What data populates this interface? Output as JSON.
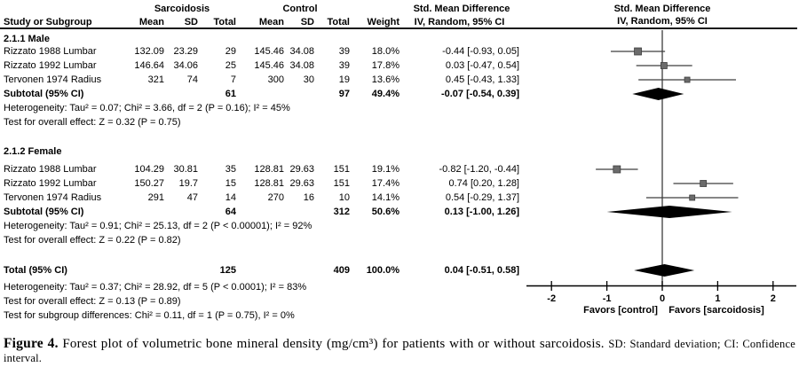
{
  "table": {
    "header": {
      "group1": "Sarcoidosis",
      "group2": "Control",
      "smd_title_left": "Std. Mean Difference",
      "smd_sub_left": "IV, Random, 95% CI",
      "smd_title_right": "Std. Mean Difference",
      "smd_sub_right": "IV, Random, 95% CI",
      "col_study": "Study or Subgroup",
      "col_mean1": "Mean",
      "col_sd1": "SD",
      "col_total1": "Total",
      "col_mean2": "Mean",
      "col_sd2": "SD",
      "col_total2": "Total",
      "col_weight": "Weight"
    },
    "subgroups": [
      {
        "label": "2.1.1 Male",
        "rows": [
          {
            "study": "Rizzato 1988 Lumbar",
            "mean1": "132.09",
            "sd1": "23.29",
            "total1": "29",
            "mean2": "145.46",
            "sd2": "34.08",
            "total2": "39",
            "weight": "18.0%",
            "ci": "-0.44 [-0.93, 0.05]"
          },
          {
            "study": "Rizzato 1992 Lumbar",
            "mean1": "146.64",
            "sd1": "34.06",
            "total1": "25",
            "mean2": "145.46",
            "sd2": "34.08",
            "total2": "39",
            "weight": "17.8%",
            "ci": "0.03 [-0.47, 0.54]"
          },
          {
            "study": "Tervonen 1974 Radius",
            "mean1": "321",
            "sd1": "74",
            "total1": "7",
            "mean2": "300",
            "sd2": "30",
            "total2": "19",
            "weight": "13.6%",
            "ci": "0.45 [-0.43, 1.33]"
          }
        ],
        "subtotal": {
          "label": "Subtotal (95% CI)",
          "total1": "61",
          "total2": "97",
          "weight": "49.4%",
          "ci": "-0.07 [-0.54, 0.39]"
        },
        "heterogeneity": "Heterogeneity: Tau² = 0.07; Chi² = 3.66, df = 2 (P = 0.16); I² = 45%",
        "overall_effect": "Test for overall effect: Z = 0.32 (P = 0.75)"
      },
      {
        "label": "2.1.2 Female",
        "rows": [
          {
            "study": "Rizzato 1988 Lumbar",
            "mean1": "104.29",
            "sd1": "30.81",
            "total1": "35",
            "mean2": "128.81",
            "sd2": "29.63",
            "total2": "151",
            "weight": "19.1%",
            "ci": "-0.82 [-1.20, -0.44]"
          },
          {
            "study": "Rizzato 1992 Lumbar",
            "mean1": "150.27",
            "sd1": "19.7",
            "total1": "15",
            "mean2": "128.81",
            "sd2": "29.63",
            "total2": "151",
            "weight": "17.4%",
            "ci": "0.74 [0.20, 1.28]"
          },
          {
            "study": "Tervonen 1974 Radius",
            "mean1": "291",
            "sd1": "47",
            "total1": "14",
            "mean2": "270",
            "sd2": "16",
            "total2": "10",
            "weight": "14.1%",
            "ci": "0.54 [-0.29, 1.37]"
          }
        ],
        "subtotal": {
          "label": "Subtotal (95% CI)",
          "total1": "64",
          "total2": "312",
          "weight": "50.6%",
          "ci": "0.13 [-1.00, 1.26]"
        },
        "heterogeneity": "Heterogeneity: Tau² = 0.91; Chi² = 25.13, df = 2 (P < 0.00001); I² = 92%",
        "overall_effect": "Test for overall effect: Z = 0.22 (P = 0.82)"
      }
    ],
    "total": {
      "label": "Total (95% CI)",
      "total1": "125",
      "total2": "409",
      "weight": "100.0%",
      "ci": "0.04 [-0.51, 0.58]"
    },
    "total_heterogeneity": "Heterogeneity: Tau² = 0.37; Chi² = 28.92, df = 5 (P < 0.0001); I² = 83%",
    "total_overall_effect": "Test for overall effect: Z = 0.13 (P = 0.89)",
    "subgroup_differences": "Test for subgroup differences: Chi² = 0.11, df = 1 (P = 0.75), I² = 0%"
  },
  "chart_data": {
    "type": "scatter",
    "title": "Std. Mean Difference",
    "subtitle": "IV, Random, 95% CI",
    "x_axis": {
      "min": -2,
      "max": 2,
      "ticks": [
        -2,
        -1,
        0,
        1,
        2
      ],
      "label_left": "Favors [control]",
      "label_right": "Favors [sarcoidosis]"
    },
    "groups": [
      {
        "name": "2.1.1 Male",
        "studies": [
          {
            "name": "Rizzato 1988 Lumbar",
            "est": -0.44,
            "lo": -0.93,
            "hi": 0.05,
            "weight": 18.0
          },
          {
            "name": "Rizzato 1992 Lumbar",
            "est": 0.03,
            "lo": -0.47,
            "hi": 0.54,
            "weight": 17.8
          },
          {
            "name": "Tervonen 1974 Radius",
            "est": 0.45,
            "lo": -0.43,
            "hi": 1.33,
            "weight": 13.6
          }
        ],
        "subtotal": {
          "est": -0.07,
          "lo": -0.54,
          "hi": 0.39,
          "weight": 49.4
        }
      },
      {
        "name": "2.1.2 Female",
        "studies": [
          {
            "name": "Rizzato 1988 Lumbar",
            "est": -0.82,
            "lo": -1.2,
            "hi": -0.44,
            "weight": 19.1
          },
          {
            "name": "Rizzato 1992 Lumbar",
            "est": 0.74,
            "lo": 0.2,
            "hi": 1.28,
            "weight": 17.4
          },
          {
            "name": "Tervonen 1974 Radius",
            "est": 0.54,
            "lo": -0.29,
            "hi": 1.37,
            "weight": 14.1
          }
        ],
        "subtotal": {
          "est": 0.13,
          "lo": -1.0,
          "hi": 1.26,
          "weight": 50.6
        }
      }
    ],
    "total": {
      "est": 0.04,
      "lo": -0.51,
      "hi": 0.58,
      "weight": 100.0
    }
  },
  "caption": {
    "figure_label": "Figure 4.",
    "body": " Forest plot of volumetric bone mineral density (mg/cm³) for patients with or without sarcoidosis. ",
    "abbreviations": "SD: Standard deviation; CI: Confidence interval."
  },
  "colors": {
    "background": "#ffffff",
    "text": "#000000",
    "marker_square": "#6b6b6b",
    "ci_line": "#3d3d3d",
    "diamond": "#000000",
    "axis": "#000000"
  }
}
